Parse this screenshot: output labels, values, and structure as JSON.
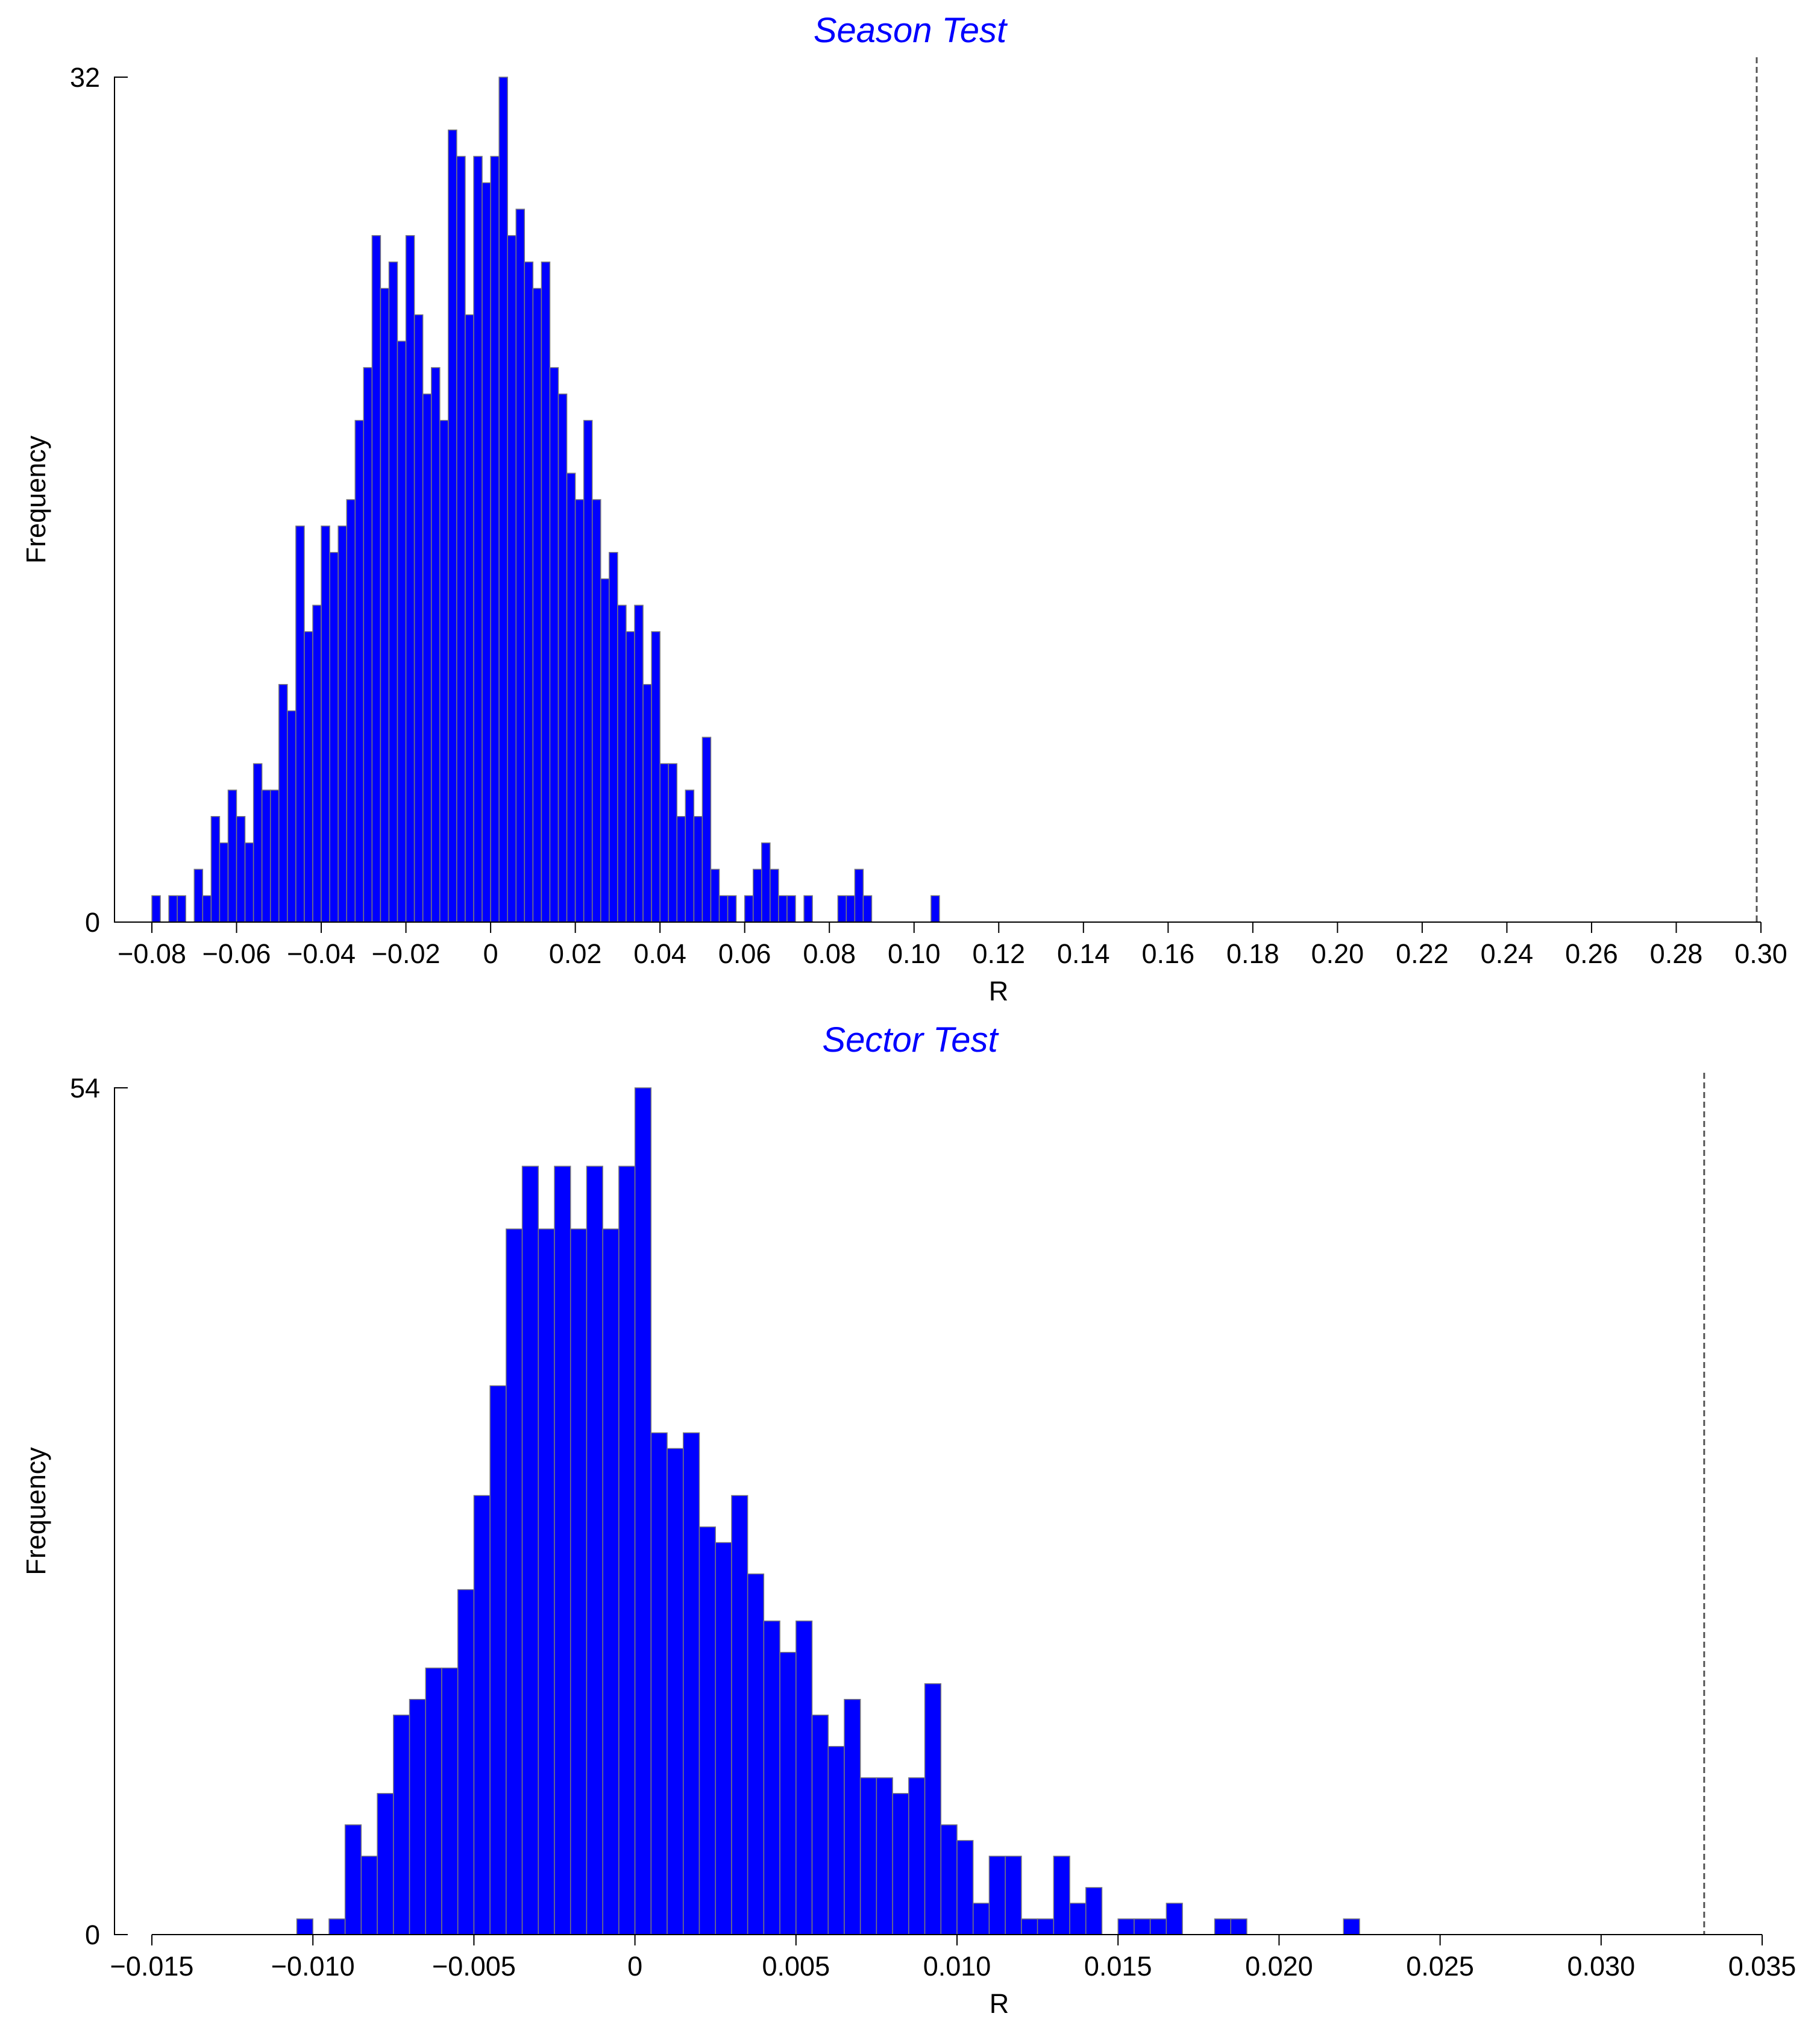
{
  "chart_data": [
    {
      "type": "bar",
      "title": "Season Test",
      "xlabel": "R",
      "ylabel": "Frequency",
      "xlim": [
        -0.08,
        0.3
      ],
      "ylim": [
        0,
        32
      ],
      "bin_width": 0.002,
      "reference_line_x": 0.299,
      "x_ticks": [
        {
          "value": -0.08,
          "label": "−0.08"
        },
        {
          "value": -0.06,
          "label": "−0.06"
        },
        {
          "value": -0.04,
          "label": "−0.04"
        },
        {
          "value": -0.02,
          "label": "−0.02"
        },
        {
          "value": 0,
          "label": "0"
        },
        {
          "value": 0.02,
          "label": "0.02"
        },
        {
          "value": 0.04,
          "label": "0.04"
        },
        {
          "value": 0.06,
          "label": "0.06"
        },
        {
          "value": 0.08,
          "label": "0.08"
        },
        {
          "value": 0.1,
          "label": "0.10"
        },
        {
          "value": 0.12,
          "label": "0.12"
        },
        {
          "value": 0.14,
          "label": "0.14"
        },
        {
          "value": 0.16,
          "label": "0.16"
        },
        {
          "value": 0.18,
          "label": "0.18"
        },
        {
          "value": 0.2,
          "label": "0.20"
        },
        {
          "value": 0.22,
          "label": "0.22"
        },
        {
          "value": 0.24,
          "label": "0.24"
        },
        {
          "value": 0.26,
          "label": "0.26"
        },
        {
          "value": 0.28,
          "label": "0.28"
        },
        {
          "value": 0.3,
          "label": "0.30"
        }
      ],
      "y_ticks": [
        {
          "value": 0,
          "label": "0"
        },
        {
          "value": 32,
          "label": "32"
        }
      ],
      "x": [
        -0.079,
        -0.077,
        -0.075,
        -0.073,
        -0.071,
        -0.069,
        -0.067,
        -0.065,
        -0.063,
        -0.061,
        -0.059,
        -0.057,
        -0.055,
        -0.053,
        -0.051,
        -0.049,
        -0.047,
        -0.045,
        -0.043,
        -0.041,
        -0.039,
        -0.037,
        -0.035,
        -0.033,
        -0.031,
        -0.029,
        -0.027,
        -0.025,
        -0.023,
        -0.021,
        -0.019,
        -0.017,
        -0.015,
        -0.013,
        -0.011,
        -0.009,
        -0.007,
        -0.005,
        -0.003,
        -0.001,
        0.001,
        0.003,
        0.005,
        0.007,
        0.009,
        0.011,
        0.013,
        0.015,
        0.017,
        0.019,
        0.021,
        0.023,
        0.025,
        0.027,
        0.029,
        0.031,
        0.033,
        0.035,
        0.037,
        0.039,
        0.041,
        0.043,
        0.045,
        0.047,
        0.049,
        0.051,
        0.053,
        0.055,
        0.057,
        0.059,
        0.061,
        0.063,
        0.065,
        0.067,
        0.069,
        0.071,
        0.073,
        0.075,
        0.077,
        0.079,
        0.081,
        0.083,
        0.085,
        0.087,
        0.089,
        0.091,
        0.093,
        0.095,
        0.097,
        0.099,
        0.101,
        0.103,
        0.105
      ],
      "values": [
        1,
        0,
        1,
        1,
        0,
        2,
        1,
        4,
        3,
        5,
        4,
        3,
        6,
        5,
        5,
        9,
        8,
        15,
        11,
        12,
        15,
        14,
        15,
        16,
        19,
        21,
        26,
        24,
        25,
        22,
        26,
        23,
        20,
        21,
        19,
        30,
        29,
        23,
        29,
        28,
        29,
        32,
        26,
        27,
        25,
        24,
        25,
        21,
        20,
        17,
        16,
        19,
        16,
        13,
        14,
        12,
        11,
        12,
        9,
        11,
        6,
        6,
        4,
        5,
        4,
        7,
        2,
        1,
        1,
        0,
        1,
        2,
        3,
        2,
        1,
        1,
        0,
        1,
        0,
        0,
        0,
        1,
        1,
        2,
        1,
        0,
        0,
        0,
        0,
        0,
        0,
        0,
        1
      ]
    },
    {
      "type": "bar",
      "title": "Sector Test",
      "xlabel": "R",
      "ylabel": "Frequency",
      "xlim": [
        -0.015,
        0.035
      ],
      "ylim": [
        0,
        54
      ],
      "bin_width": 0.0005,
      "reference_line_x": 0.0332,
      "x_ticks": [
        {
          "value": -0.015,
          "label": "−0.015"
        },
        {
          "value": -0.01,
          "label": "−0.010"
        },
        {
          "value": -0.005,
          "label": "−0.005"
        },
        {
          "value": 0,
          "label": "0"
        },
        {
          "value": 0.005,
          "label": "0.005"
        },
        {
          "value": 0.01,
          "label": "0.010"
        },
        {
          "value": 0.015,
          "label": "0.015"
        },
        {
          "value": 0.02,
          "label": "0.020"
        },
        {
          "value": 0.025,
          "label": "0.025"
        },
        {
          "value": 0.03,
          "label": "0.030"
        },
        {
          "value": 0.035,
          "label": "0.035"
        }
      ],
      "y_ticks": [
        {
          "value": 0,
          "label": "0"
        },
        {
          "value": 54,
          "label": "54"
        }
      ],
      "x": [
        -0.01025,
        -0.00975,
        -0.00925,
        -0.00875,
        -0.00825,
        -0.00775,
        -0.00725,
        -0.00675,
        -0.00625,
        -0.00575,
        -0.00525,
        -0.00475,
        -0.00425,
        -0.00375,
        -0.00325,
        -0.00275,
        -0.00225,
        -0.00175,
        -0.00125,
        -0.00075,
        -0.00025,
        0.00025,
        0.00075,
        0.00125,
        0.00175,
        0.00225,
        0.00275,
        0.00325,
        0.00375,
        0.00425,
        0.00475,
        0.00525,
        0.00575,
        0.00625,
        0.00675,
        0.00725,
        0.00775,
        0.00825,
        0.00875,
        0.00925,
        0.00975,
        0.01025,
        0.01075,
        0.01125,
        0.01175,
        0.01225,
        0.01275,
        0.01325,
        0.01375,
        0.01425,
        0.01475,
        0.01525,
        0.01575,
        0.01625,
        0.01675,
        0.01725,
        0.01775,
        0.01825,
        0.01875,
        0.01925,
        0.01975,
        0.02025,
        0.02075,
        0.02125,
        0.02175,
        0.02225
      ],
      "values": [
        1,
        0,
        1,
        7,
        5,
        9,
        14,
        15,
        17,
        17,
        22,
        28,
        35,
        45,
        49,
        45,
        49,
        45,
        49,
        45,
        49,
        54,
        32,
        31,
        32,
        26,
        25,
        28,
        23,
        20,
        18,
        20,
        14,
        12,
        15,
        10,
        10,
        9,
        10,
        16,
        7,
        6,
        2,
        5,
        5,
        1,
        1,
        5,
        2,
        3,
        0,
        1,
        1,
        1,
        2,
        0,
        0,
        1,
        1,
        0,
        0,
        0,
        0,
        0,
        0,
        1
      ]
    }
  ]
}
